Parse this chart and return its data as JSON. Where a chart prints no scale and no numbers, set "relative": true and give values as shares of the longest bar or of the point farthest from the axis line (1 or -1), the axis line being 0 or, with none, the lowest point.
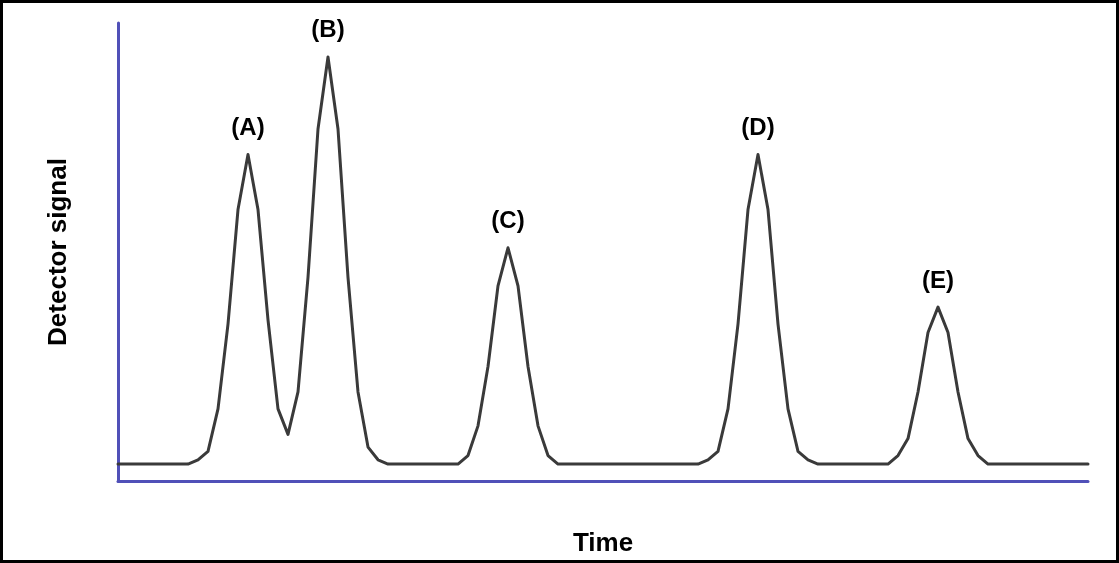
{
  "chart_data": {
    "type": "line",
    "xlabel": "Time",
    "ylabel": "Detector signal",
    "relative": true,
    "annotations": [
      "(A)",
      "(B)",
      "(C)",
      "(D)",
      "(E)"
    ],
    "marker": "none",
    "line_style": "solid",
    "categories": [
      null,
      null,
      null,
      null,
      null,
      null,
      null,
      null,
      null,
      null,
      null,
      null,
      null,
      null,
      null,
      null,
      null,
      null,
      null,
      null,
      null,
      null,
      null,
      null,
      null,
      null,
      null,
      null,
      null,
      null,
      null,
      null,
      null,
      null,
      null,
      null,
      null,
      null,
      null,
      null,
      null,
      null,
      null,
      null,
      null,
      null,
      null,
      null,
      null,
      null,
      null,
      null,
      null,
      null,
      null,
      null,
      null,
      null,
      null,
      null,
      null,
      null,
      null,
      null,
      null,
      null,
      null,
      null,
      null,
      null,
      null,
      null,
      null,
      null,
      null,
      null,
      null,
      null,
      null,
      null,
      null,
      null,
      null,
      null,
      null,
      null,
      null,
      null,
      null,
      null,
      null,
      null,
      null,
      null,
      null,
      null,
      null,
      null
    ],
    "series": [
      {
        "color": "#3a3a3a",
        "values": [
          0.04,
          0.04,
          0.04,
          0.04,
          0.04,
          0.04,
          0.04,
          0.04,
          0.05,
          0.07,
          0.17,
          0.37,
          0.64,
          0.77,
          0.64,
          0.38,
          0.17,
          0.11,
          0.21,
          0.48,
          0.83,
          1,
          0.83,
          0.48,
          0.21,
          0.08,
          0.05,
          0.04,
          0.04,
          0.04,
          0.04,
          0.04,
          0.04,
          0.04,
          0.04,
          0.06,
          0.13,
          0.27,
          0.46,
          0.55,
          0.46,
          0.27,
          0.13,
          0.06,
          0.04,
          0.04,
          0.04,
          0.04,
          0.04,
          0.04,
          0.04,
          0.04,
          0.04,
          0.04,
          0.04,
          0.04,
          0.04,
          0.04,
          0.04,
          0.05,
          0.07,
          0.17,
          0.37,
          0.64,
          0.77,
          0.64,
          0.37,
          0.17,
          0.07,
          0.05,
          0.04,
          0.04,
          0.04,
          0.04,
          0.04,
          0.04,
          0.04,
          0.04,
          0.06,
          0.1,
          0.21,
          0.35,
          0.41,
          0.35,
          0.21,
          0.1,
          0.06,
          0.04,
          0.04,
          0.04,
          0.04,
          0.04,
          0.04,
          0.04,
          0.04,
          0.04,
          0.04,
          0.04
        ]
      }
    ]
  }
}
